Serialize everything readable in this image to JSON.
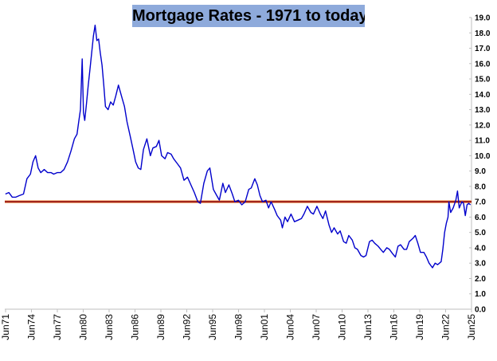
{
  "chart_data": {
    "type": "line",
    "title": "Mortgage Rates - 1971 to today",
    "xlabel": "",
    "ylabel": "",
    "ylim": [
      0,
      19
    ],
    "y_ticks": [
      "0.0",
      "1.0",
      "2.0",
      "3.0",
      "4.0",
      "5.0",
      "6.0",
      "7.0",
      "8.0",
      "9.0",
      "10.0",
      "11.0",
      "12.0",
      "13.0",
      "14.0",
      "15.0",
      "16.0",
      "17.0",
      "18.0",
      "19.0"
    ],
    "x_range": [
      1971.33,
      2025.42
    ],
    "x_ticks": [
      {
        "label": "Jun71",
        "x": 1971.42
      },
      {
        "label": "Jun74",
        "x": 1974.42
      },
      {
        "label": "Jun77",
        "x": 1977.42
      },
      {
        "label": "Jun80",
        "x": 1980.42
      },
      {
        "label": "Jun83",
        "x": 1983.42
      },
      {
        "label": "Jun86",
        "x": 1986.42
      },
      {
        "label": "Jun89",
        "x": 1989.42
      },
      {
        "label": "Jun92",
        "x": 1992.42
      },
      {
        "label": "Jun95",
        "x": 1995.42
      },
      {
        "label": "Jun98",
        "x": 1998.42
      },
      {
        "label": "Jun01",
        "x": 2001.42
      },
      {
        "label": "Jun04",
        "x": 2004.42
      },
      {
        "label": "Jun07",
        "x": 2007.42
      },
      {
        "label": "Jun10",
        "x": 2010.42
      },
      {
        "label": "Jun13",
        "x": 2013.42
      },
      {
        "label": "Jun16",
        "x": 2016.42
      },
      {
        "label": "Jun19",
        "x": 2019.42
      },
      {
        "label": "Jun22",
        "x": 2022.42
      },
      {
        "label": "Jun25",
        "x": 2025.42
      }
    ],
    "grid": false,
    "legend": "none",
    "series": [
      {
        "color": "#0000cc",
        "points": [
          [
            1971.4,
            7.5
          ],
          [
            1971.8,
            7.6
          ],
          [
            1972.2,
            7.3
          ],
          [
            1972.6,
            7.3
          ],
          [
            1973.0,
            7.4
          ],
          [
            1973.5,
            7.5
          ],
          [
            1973.9,
            8.5
          ],
          [
            1974.3,
            8.8
          ],
          [
            1974.6,
            9.6
          ],
          [
            1974.9,
            10.0
          ],
          [
            1975.2,
            9.2
          ],
          [
            1975.5,
            8.9
          ],
          [
            1975.9,
            9.1
          ],
          [
            1976.3,
            8.9
          ],
          [
            1976.7,
            8.9
          ],
          [
            1977.0,
            8.8
          ],
          [
            1977.4,
            8.9
          ],
          [
            1977.8,
            8.9
          ],
          [
            1978.2,
            9.1
          ],
          [
            1978.6,
            9.6
          ],
          [
            1979.0,
            10.3
          ],
          [
            1979.4,
            11.1
          ],
          [
            1979.7,
            11.4
          ],
          [
            1979.9,
            12.2
          ],
          [
            1980.1,
            13.0
          ],
          [
            1980.3,
            16.3
          ],
          [
            1980.45,
            12.8
          ],
          [
            1980.6,
            12.3
          ],
          [
            1980.8,
            13.4
          ],
          [
            1981.0,
            14.6
          ],
          [
            1981.2,
            15.6
          ],
          [
            1981.4,
            16.7
          ],
          [
            1981.6,
            17.8
          ],
          [
            1981.8,
            18.5
          ],
          [
            1982.0,
            17.5
          ],
          [
            1982.2,
            17.6
          ],
          [
            1982.4,
            16.7
          ],
          [
            1982.6,
            15.9
          ],
          [
            1982.8,
            14.6
          ],
          [
            1983.0,
            13.2
          ],
          [
            1983.3,
            13.0
          ],
          [
            1983.6,
            13.5
          ],
          [
            1983.9,
            13.3
          ],
          [
            1984.2,
            13.9
          ],
          [
            1984.5,
            14.6
          ],
          [
            1984.9,
            13.8
          ],
          [
            1985.2,
            13.2
          ],
          [
            1985.5,
            12.2
          ],
          [
            1985.9,
            11.2
          ],
          [
            1986.2,
            10.4
          ],
          [
            1986.5,
            9.6
          ],
          [
            1986.8,
            9.2
          ],
          [
            1987.1,
            9.1
          ],
          [
            1987.4,
            10.4
          ],
          [
            1987.8,
            11.1
          ],
          [
            1988.2,
            10.0
          ],
          [
            1988.5,
            10.5
          ],
          [
            1988.9,
            10.6
          ],
          [
            1989.2,
            11.0
          ],
          [
            1989.5,
            10.0
          ],
          [
            1989.9,
            9.8
          ],
          [
            1990.2,
            10.2
          ],
          [
            1990.6,
            10.1
          ],
          [
            1990.9,
            9.8
          ],
          [
            1991.3,
            9.5
          ],
          [
            1991.7,
            9.2
          ],
          [
            1992.1,
            8.4
          ],
          [
            1992.5,
            8.6
          ],
          [
            1992.9,
            8.1
          ],
          [
            1993.3,
            7.6
          ],
          [
            1993.7,
            7.0
          ],
          [
            1994.0,
            6.9
          ],
          [
            1994.4,
            8.2
          ],
          [
            1994.8,
            9.0
          ],
          [
            1995.1,
            9.2
          ],
          [
            1995.5,
            7.8
          ],
          [
            1995.9,
            7.4
          ],
          [
            1996.2,
            7.1
          ],
          [
            1996.6,
            8.2
          ],
          [
            1996.9,
            7.6
          ],
          [
            1997.3,
            8.1
          ],
          [
            1997.7,
            7.5
          ],
          [
            1998.0,
            7.0
          ],
          [
            1998.4,
            7.1
          ],
          [
            1998.8,
            6.8
          ],
          [
            1999.2,
            7.0
          ],
          [
            1999.6,
            7.8
          ],
          [
            1999.9,
            7.9
          ],
          [
            2000.3,
            8.5
          ],
          [
            2000.6,
            8.1
          ],
          [
            2000.9,
            7.4
          ],
          [
            2001.2,
            7.0
          ],
          [
            2001.6,
            7.1
          ],
          [
            2001.9,
            6.6
          ],
          [
            2002.2,
            7.0
          ],
          [
            2002.6,
            6.5
          ],
          [
            2002.9,
            6.1
          ],
          [
            2003.3,
            5.8
          ],
          [
            2003.5,
            5.3
          ],
          [
            2003.8,
            6.0
          ],
          [
            2004.1,
            5.7
          ],
          [
            2004.5,
            6.2
          ],
          [
            2004.9,
            5.7
          ],
          [
            2005.3,
            5.8
          ],
          [
            2005.7,
            5.9
          ],
          [
            2006.0,
            6.2
          ],
          [
            2006.4,
            6.7
          ],
          [
            2006.8,
            6.3
          ],
          [
            2007.1,
            6.2
          ],
          [
            2007.5,
            6.7
          ],
          [
            2007.9,
            6.2
          ],
          [
            2008.2,
            5.9
          ],
          [
            2008.5,
            6.4
          ],
          [
            2008.9,
            5.5
          ],
          [
            2009.2,
            5.0
          ],
          [
            2009.5,
            5.3
          ],
          [
            2009.9,
            4.9
          ],
          [
            2010.2,
            5.1
          ],
          [
            2010.6,
            4.4
          ],
          [
            2010.9,
            4.3
          ],
          [
            2011.2,
            4.8
          ],
          [
            2011.6,
            4.5
          ],
          [
            2011.9,
            4.0
          ],
          [
            2012.2,
            3.9
          ],
          [
            2012.6,
            3.5
          ],
          [
            2012.9,
            3.4
          ],
          [
            2013.2,
            3.5
          ],
          [
            2013.6,
            4.4
          ],
          [
            2013.9,
            4.5
          ],
          [
            2014.2,
            4.3
          ],
          [
            2014.6,
            4.1
          ],
          [
            2014.9,
            3.9
          ],
          [
            2015.2,
            3.7
          ],
          [
            2015.6,
            4.0
          ],
          [
            2015.9,
            3.9
          ],
          [
            2016.3,
            3.6
          ],
          [
            2016.6,
            3.4
          ],
          [
            2016.9,
            4.1
          ],
          [
            2017.2,
            4.2
          ],
          [
            2017.6,
            3.9
          ],
          [
            2017.9,
            3.9
          ],
          [
            2018.2,
            4.4
          ],
          [
            2018.6,
            4.6
          ],
          [
            2018.9,
            4.8
          ],
          [
            2019.2,
            4.3
          ],
          [
            2019.5,
            3.7
          ],
          [
            2019.9,
            3.7
          ],
          [
            2020.2,
            3.4
          ],
          [
            2020.5,
            3.0
          ],
          [
            2020.9,
            2.7
          ],
          [
            2021.2,
            3.0
          ],
          [
            2021.5,
            2.9
          ],
          [
            2021.9,
            3.1
          ],
          [
            2022.1,
            3.9
          ],
          [
            2022.3,
            5.0
          ],
          [
            2022.5,
            5.6
          ],
          [
            2022.7,
            6.0
          ],
          [
            2022.8,
            7.0
          ],
          [
            2023.0,
            6.3
          ],
          [
            2023.3,
            6.6
          ],
          [
            2023.6,
            7.1
          ],
          [
            2023.8,
            7.7
          ],
          [
            2024.0,
            6.6
          ],
          [
            2024.3,
            7.0
          ],
          [
            2024.5,
            6.9
          ],
          [
            2024.7,
            6.1
          ],
          [
            2024.9,
            6.8
          ],
          [
            2025.1,
            6.9
          ],
          [
            2025.3,
            6.8
          ]
        ]
      }
    ],
    "reference_line": {
      "y": 7.0,
      "color": "#8b0000"
    }
  }
}
